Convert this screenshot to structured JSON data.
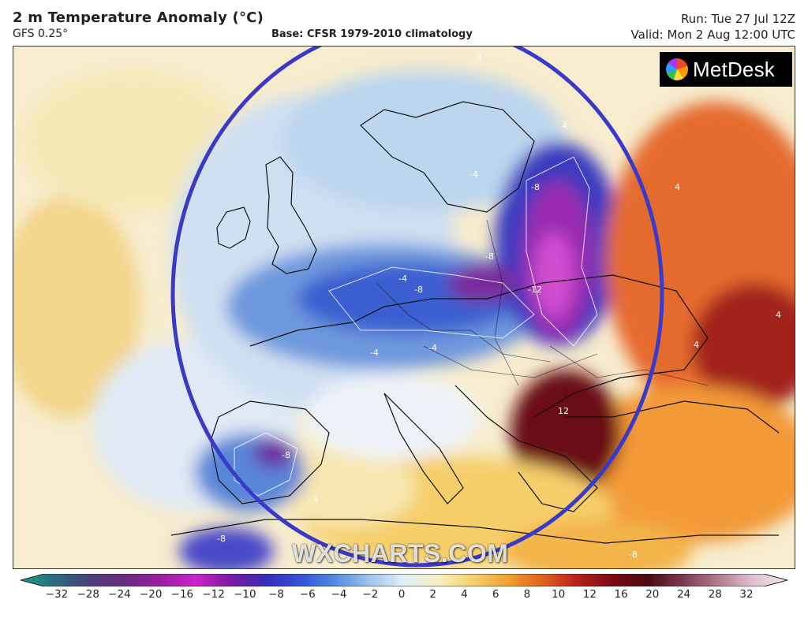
{
  "header": {
    "title": "2 m Temperature Anomaly (°C)",
    "model": "GFS 0.25°",
    "base": "Base: CFSR 1979-2010 climatology",
    "run": "Run: Tue 27 Jul 12Z",
    "valid": "Valid: Mon 2 Aug 12:00 UTC"
  },
  "logo": {
    "text": "MetDesk"
  },
  "watermark": "WXCHARTS.COM",
  "map_labels": [
    "4",
    "4",
    "4",
    "-4",
    "-8",
    "-8",
    "-8",
    "-4",
    "-8",
    "-12",
    "-4",
    "-4",
    "-8",
    "-8",
    "12",
    "4",
    "4",
    "4"
  ],
  "colorbar": {
    "ticks": [
      "−32",
      "−28",
      "−24",
      "−20",
      "−16",
      "−12",
      "−10",
      "−8",
      "−6",
      "−4",
      "−2",
      "0",
      "2",
      "4",
      "6",
      "8",
      "10",
      "12",
      "16",
      "20",
      "24",
      "28",
      "32"
    ],
    "colors": [
      "#13a58d",
      "#2d6a7e",
      "#4b3f7a",
      "#6b2a80",
      "#9a1ea0",
      "#cc22cc",
      "#7a1aa0",
      "#3a2ab8",
      "#3350d8",
      "#4f8ae0",
      "#9cc4ec",
      "#e4eef8",
      "#f8efc0",
      "#f5cf6a",
      "#f0a030",
      "#e0601e",
      "#b8201e",
      "#7a0a14",
      "#4a0a12",
      "#7e3a50",
      "#b07a90",
      "#e0c0d0",
      "#f4e6ee"
    ]
  },
  "highlight": {
    "shape": "circle",
    "color": "#3a3ac8"
  }
}
